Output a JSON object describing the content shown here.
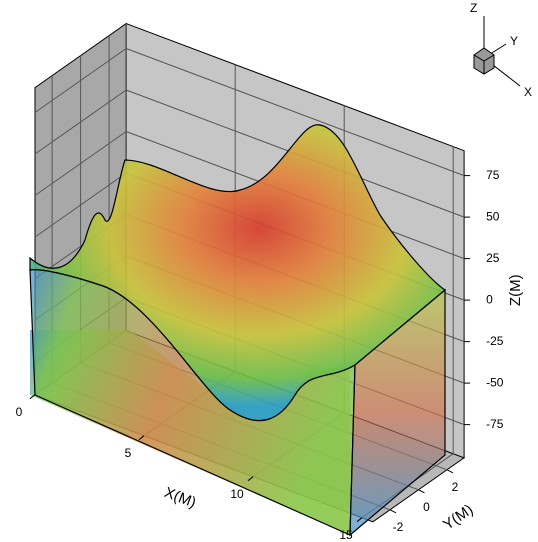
{
  "chart_data": {
    "type": "surface3d",
    "xlabel": "X(M)",
    "ylabel": "Y(M)",
    "zlabel": "Z(M)",
    "xlim": [
      0,
      15.5
    ],
    "ylim": [
      -3.2,
      3.2
    ],
    "zlim": [
      -95,
      90
    ],
    "xticks": [
      0,
      5,
      10,
      15
    ],
    "yticks": [
      -2,
      0,
      2
    ],
    "zticks": [
      75,
      50,
      25,
      0,
      -25,
      -50,
      -75
    ]
  },
  "axis_triad": {
    "z": "Z",
    "y": "Y",
    "x": "X"
  }
}
